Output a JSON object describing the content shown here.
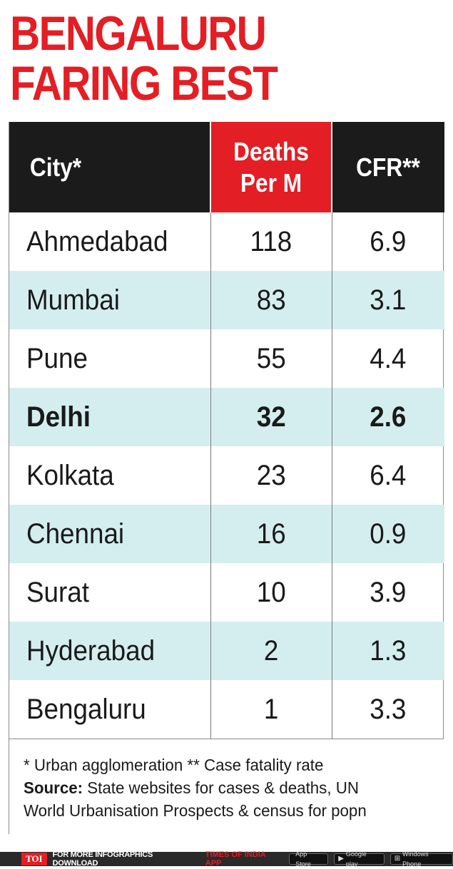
{
  "chart_data": {
    "type": "table",
    "title_lines": [
      "BENGALURU",
      "FARING BEST"
    ],
    "columns": [
      "City*",
      "Deaths Per M",
      "CFR**"
    ],
    "rows": [
      {
        "city": "Ahmedabad",
        "deaths_per_m": "118",
        "cfr": "6.9",
        "highlight": false
      },
      {
        "city": "Mumbai",
        "deaths_per_m": "83",
        "cfr": "3.1",
        "highlight": false
      },
      {
        "city": "Pune",
        "deaths_per_m": "55",
        "cfr": "4.4",
        "highlight": false
      },
      {
        "city": "Delhi",
        "deaths_per_m": "32",
        "cfr": "2.6",
        "highlight": true
      },
      {
        "city": "Kolkata",
        "deaths_per_m": "23",
        "cfr": "6.4",
        "highlight": false
      },
      {
        "city": "Chennai",
        "deaths_per_m": "16",
        "cfr": "0.9",
        "highlight": false
      },
      {
        "city": "Surat",
        "deaths_per_m": "10",
        "cfr": "3.9",
        "highlight": false
      },
      {
        "city": "Hyderabad",
        "deaths_per_m": "2",
        "cfr": "1.3",
        "highlight": false
      },
      {
        "city": "Bengaluru",
        "deaths_per_m": "1",
        "cfr": "3.3",
        "highlight": false
      }
    ],
    "footnote": "* Urban agglomeration ** Case fatality rate",
    "source_label": "Source:",
    "source_text": "State websites for cases & deaths, UN World Urbanisation Prospects & census for popn"
  },
  "footer": {
    "logo": "TOI",
    "message": "FOR MORE INFOGRAPHICS DOWNLOAD",
    "app_name": "TIMES OF INDIA APP",
    "stores": [
      "App Store",
      "Google play",
      "Windows Phone"
    ]
  },
  "colors": {
    "accent_red": "#e31e24",
    "header_black": "#1b1b1b",
    "alt_row": "#d4eef0"
  }
}
